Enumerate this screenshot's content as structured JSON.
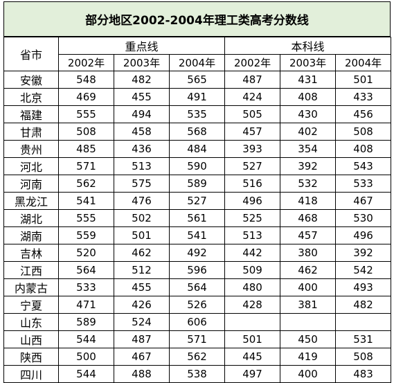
{
  "title": "部分地区2002-2004年理工类高考分数线",
  "header": {
    "province": "省市",
    "group_key": "重点线",
    "group_undergrad": "本科线",
    "years": [
      "2002年",
      "2003年",
      "2004年",
      "2002年",
      "2003年",
      "2004年"
    ]
  },
  "rows": [
    {
      "province": "安徽",
      "v": [
        "548",
        "482",
        "565",
        "487",
        "431",
        "501"
      ]
    },
    {
      "province": "北京",
      "v": [
        "469",
        "455",
        "491",
        "424",
        "408",
        "433"
      ]
    },
    {
      "province": "福建",
      "v": [
        "555",
        "494",
        "535",
        "505",
        "430",
        "456"
      ]
    },
    {
      "province": "甘肃",
      "v": [
        "508",
        "458",
        "568",
        "457",
        "402",
        "508"
      ]
    },
    {
      "province": "贵州",
      "v": [
        "485",
        "436",
        "484",
        "393",
        "354",
        "408"
      ]
    },
    {
      "province": "河北",
      "v": [
        "571",
        "513",
        "590",
        "527",
        "392",
        "543"
      ]
    },
    {
      "province": "河南",
      "v": [
        "562",
        "575",
        "589",
        "516",
        "532",
        "533"
      ]
    },
    {
      "province": "黑龙江",
      "v": [
        "541",
        "476",
        "527",
        "496",
        "418",
        "467"
      ]
    },
    {
      "province": "湖北",
      "v": [
        "555",
        "502",
        "561",
        "525",
        "468",
        "530"
      ]
    },
    {
      "province": "湖南",
      "v": [
        "559",
        "501",
        "541",
        "513",
        "457",
        "496"
      ]
    },
    {
      "province": "吉林",
      "v": [
        "520",
        "462",
        "492",
        "442",
        "380",
        "392"
      ]
    },
    {
      "province": "江西",
      "v": [
        "564",
        "512",
        "596",
        "509",
        "462",
        "542"
      ]
    },
    {
      "province": "内蒙古",
      "v": [
        "533",
        "455",
        "564",
        "480",
        "400",
        "493"
      ]
    },
    {
      "province": "宁夏",
      "v": [
        "471",
        "426",
        "526",
        "428",
        "381",
        "482"
      ]
    },
    {
      "province": "山东",
      "v": [
        "589",
        "524",
        "606",
        "",
        "",
        ""
      ]
    },
    {
      "province": "山西",
      "v": [
        "544",
        "487",
        "571",
        "501",
        "450",
        "531"
      ]
    },
    {
      "province": "陕西",
      "v": [
        "500",
        "467",
        "562",
        "445",
        "419",
        "508"
      ]
    },
    {
      "province": "四川",
      "v": [
        "544",
        "488",
        "538",
        "497",
        "400",
        "483"
      ]
    }
  ]
}
